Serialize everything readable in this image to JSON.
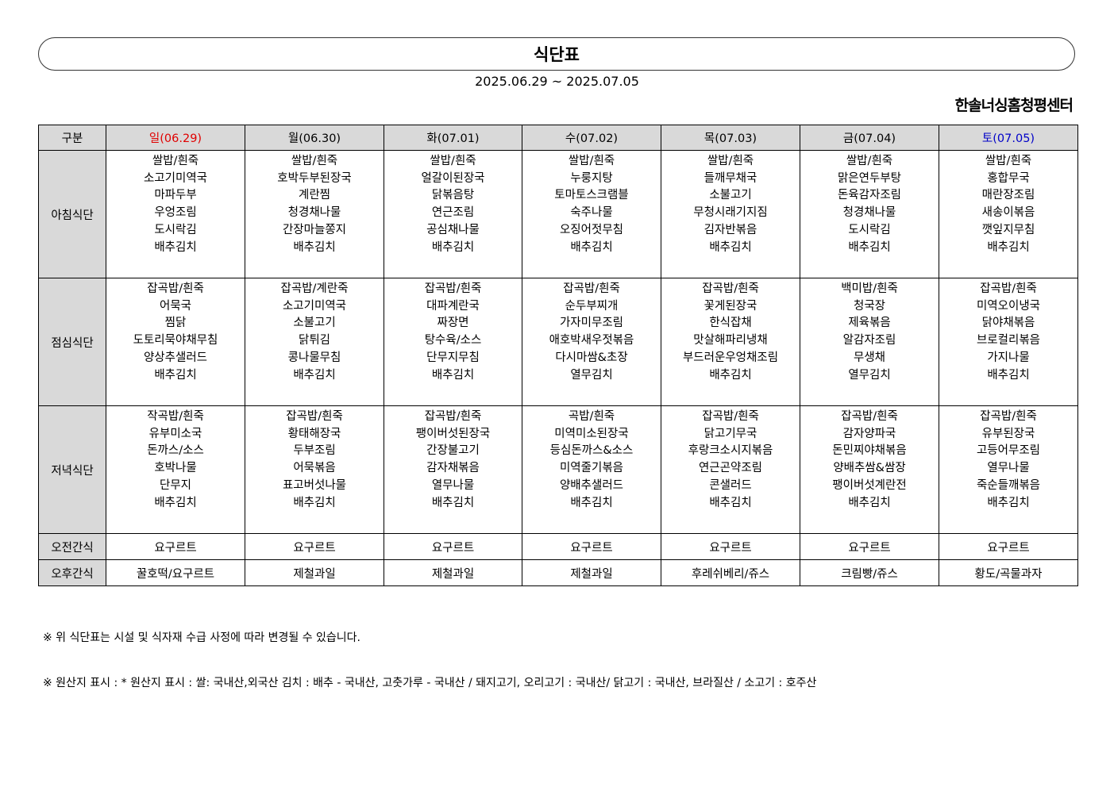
{
  "title": "식단표",
  "period": "2025.06.29 ~ 2025.07.05",
  "center_name": "한솔너싱홈청평센터",
  "header": {
    "category": "구분",
    "days": [
      "일(06.29)",
      "월(06.30)",
      "화(07.01)",
      "수(07.02)",
      "목(07.03)",
      "금(07.04)",
      "토(07.05)"
    ]
  },
  "colors": {
    "sunday": "#e00000",
    "saturday": "#0000c8",
    "header_bg": "#d9d9d9"
  },
  "meals": [
    {
      "label": "아침식단",
      "days": [
        [
          "쌀밥/흰죽",
          "소고기미역국",
          "마파두부",
          "우엉조림",
          "도시락김",
          "배추김치"
        ],
        [
          "쌀밥/흰죽",
          "호박두부된장국",
          "계란찜",
          "청경채나물",
          "간장마늘쫑지",
          "배추김치"
        ],
        [
          "쌀밥/흰죽",
          "얼갈이된장국",
          "닭볶음탕",
          "연근조림",
          "공심채나물",
          "배추김치"
        ],
        [
          "쌀밥/흰죽",
          "누룽지탕",
          "토마토스크램블",
          "숙주나물",
          "오징어젓무침",
          "배추김치"
        ],
        [
          "쌀밥/흰죽",
          "들깨무채국",
          "소불고기",
          "무청시래기지짐",
          "김자반볶음",
          "배추김치"
        ],
        [
          "쌀밥/흰죽",
          "맑은연두부탕",
          "돈육감자조림",
          "청경채나물",
          "도시락김",
          "배추김치"
        ],
        [
          "쌀밥/흰죽",
          "홍합무국",
          "매란장조림",
          "새송이볶음",
          "깻잎지무침",
          "배추김치"
        ]
      ]
    },
    {
      "label": "점심식단",
      "days": [
        [
          "잡곡밥/흰죽",
          "어묵국",
          "찜닭",
          "도토리묵야채무침",
          "양상추샐러드",
          "배추김치"
        ],
        [
          "잡곡밥/계란죽",
          "소고기미역국",
          "소불고기",
          "닭튀김",
          "콩나물무침",
          "배추김치"
        ],
        [
          "잡곡밥/흰죽",
          "대파계란국",
          "짜장면",
          "탕수육/소스",
          "단무지무침",
          "배추김치"
        ],
        [
          "잡곡밥/흰죽",
          "순두부찌개",
          "가자미무조림",
          "애호박새우젓볶음",
          "다시마쌈&초장",
          "열무김치"
        ],
        [
          "잡곡밥/흰죽",
          "꽃게된장국",
          "한식잡채",
          "맛살해파리냉채",
          "부드러운우엉채조림",
          "배추김치"
        ],
        [
          "백미밥/흰죽",
          "청국장",
          "제육볶음",
          "알감자조림",
          "무생채",
          "열무김치"
        ],
        [
          "잡곡밥/흰죽",
          "미역오이냉국",
          "닭야채볶음",
          "브로컬리볶음",
          "가지나물",
          "배추김치"
        ]
      ]
    },
    {
      "label": "저녁식단",
      "days": [
        [
          "작곡밥/흰죽",
          "유부미소국",
          "돈까스/소스",
          "호박나물",
          "단무지",
          "배추김치"
        ],
        [
          "잡곡밥/흰죽",
          "황태해장국",
          "두부조림",
          "어묵볶음",
          "표고버섯나물",
          "배추김치"
        ],
        [
          "잡곡밥/흰죽",
          "팽이버섯된장국",
          "간장불고기",
          "감자채볶음",
          "열무나물",
          "배추김치"
        ],
        [
          "곡밥/흰죽",
          "미역미소된장국",
          "등심돈까스&소스",
          "미역줄기볶음",
          "양배추샐러드",
          "배추김치"
        ],
        [
          "잡곡밥/흰죽",
          "닭고기무국",
          "후랑크소시지볶음",
          "연근곤약조림",
          "콘샐러드",
          "배추김치"
        ],
        [
          "잡곡밥/흰죽",
          "감자양파국",
          "돈민찌야채볶음",
          "양배추쌈&쌈장",
          "팽이버섯계란전",
          "배추김치"
        ],
        [
          "잡곡밥/흰죽",
          "유부된장국",
          "고등어무조림",
          "열무나물",
          "죽순들깨볶음",
          "배추김치"
        ]
      ]
    }
  ],
  "snacks": [
    {
      "label": "오전간식",
      "days": [
        "요구르트",
        "요구르트",
        "요구르트",
        "요구르트",
        "요구르트",
        "요구르트",
        "요구르트"
      ]
    },
    {
      "label": "오후간식",
      "days": [
        "꿀호떡/요구르트",
        "제철과일",
        "제철과일",
        "제철과일",
        "후레쉬베리/쥬스",
        "크림빵/쥬스",
        "황도/곡물과자"
      ]
    }
  ],
  "notes": [
    "※ 위 식단표는 시설 및 식자재 수급 사정에 따라 변경될 수 있습니다.",
    "※ 원산지 표시 : * 원산지 표시 : 쌀: 국내산,외국산 김치 : 배추 - 국내산, 고춧가루 - 국내산 / 돼지고기, 오리고기 : 국내산/ 닭고기 : 국내산, 브라질산 / 소고기 : 호주산"
  ]
}
